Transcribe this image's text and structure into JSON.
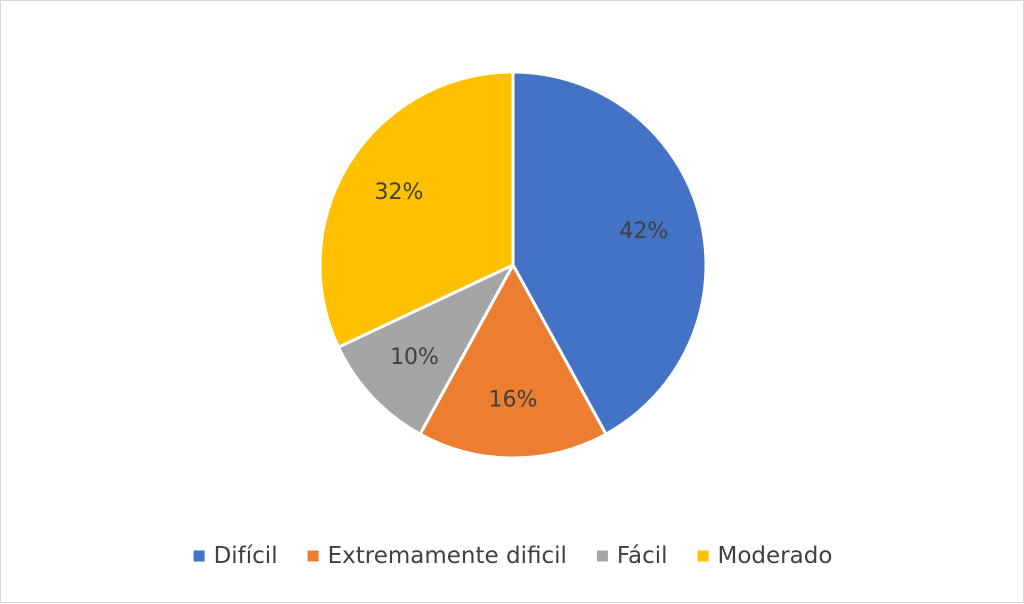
{
  "chart_data": {
    "type": "pie",
    "title": "",
    "categories": [
      "Difícil",
      "Extremamente dificil",
      "Fácil",
      "Moderado"
    ],
    "values": [
      42,
      16,
      10,
      32
    ],
    "labels": [
      "42%",
      "16%",
      "10%",
      "32%"
    ],
    "colors": [
      "#4472c4",
      "#ed7d31",
      "#a5a5a5",
      "#ffc000"
    ],
    "start_angle_deg": 0,
    "direction": "clockwise",
    "legend_position": "bottom",
    "slice_border_color": "#ffffff"
  }
}
